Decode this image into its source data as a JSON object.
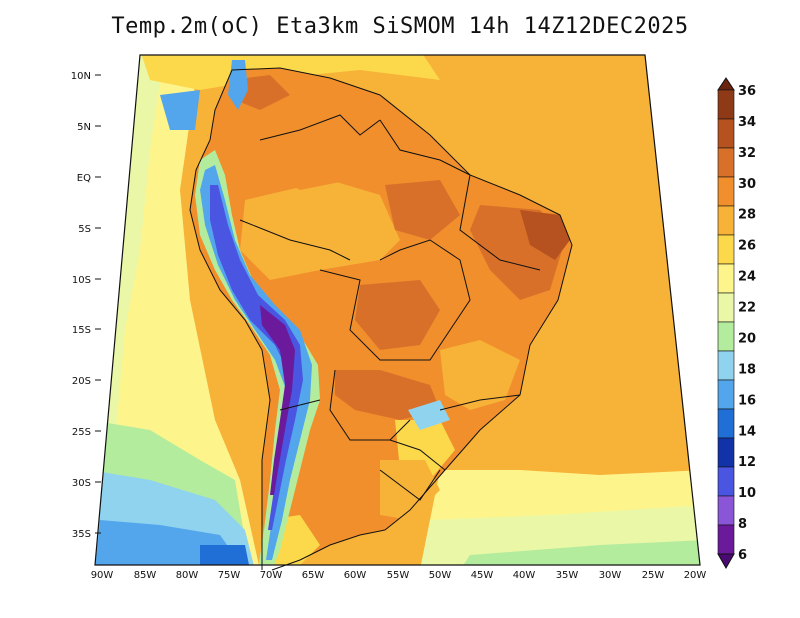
{
  "title": "Temp.2m(oC) Eta3km SiSMOM 14h 14Z12DEC2025",
  "map": {
    "lon_range": [
      -90,
      -20
    ],
    "lat_range": [
      -37.5,
      12.5
    ],
    "lat_labels": [
      "10N",
      "5N",
      "EQ",
      "5S",
      "10S",
      "15S",
      "20S",
      "25S",
      "30S",
      "35S"
    ],
    "lat_values": [
      10,
      5,
      0,
      -5,
      -10,
      -15,
      -20,
      -25,
      -30,
      -35
    ],
    "lon_labels": [
      "90W",
      "85W",
      "80W",
      "75W",
      "70W",
      "65W",
      "60W",
      "55W",
      "50W",
      "45W",
      "40W",
      "35W",
      "30W",
      "25W",
      "20W"
    ],
    "lon_values": [
      -90,
      -85,
      -80,
      -75,
      -70,
      -65,
      -60,
      -55,
      -50,
      -45,
      -40,
      -35,
      -30,
      -25,
      -20
    ]
  },
  "colorbar": {
    "labels": [
      "36",
      "34",
      "32",
      "30",
      "28",
      "26",
      "24",
      "22",
      "20",
      "18",
      "16",
      "14",
      "12",
      "10",
      "8",
      "6"
    ],
    "colors": [
      "#6b2410",
      "#8f3a16",
      "#b5521f",
      "#d8702a",
      "#f08f2c",
      "#f7b238",
      "#fcd84b",
      "#fdf58c",
      "#e9f7a7",
      "#b4ec9e",
      "#8fd3ee",
      "#53a6ec",
      "#1f6fd6",
      "#1232a8",
      "#4a55e2",
      "#8b55d8",
      "#6a1a9a",
      "#4a0a72"
    ]
  }
}
